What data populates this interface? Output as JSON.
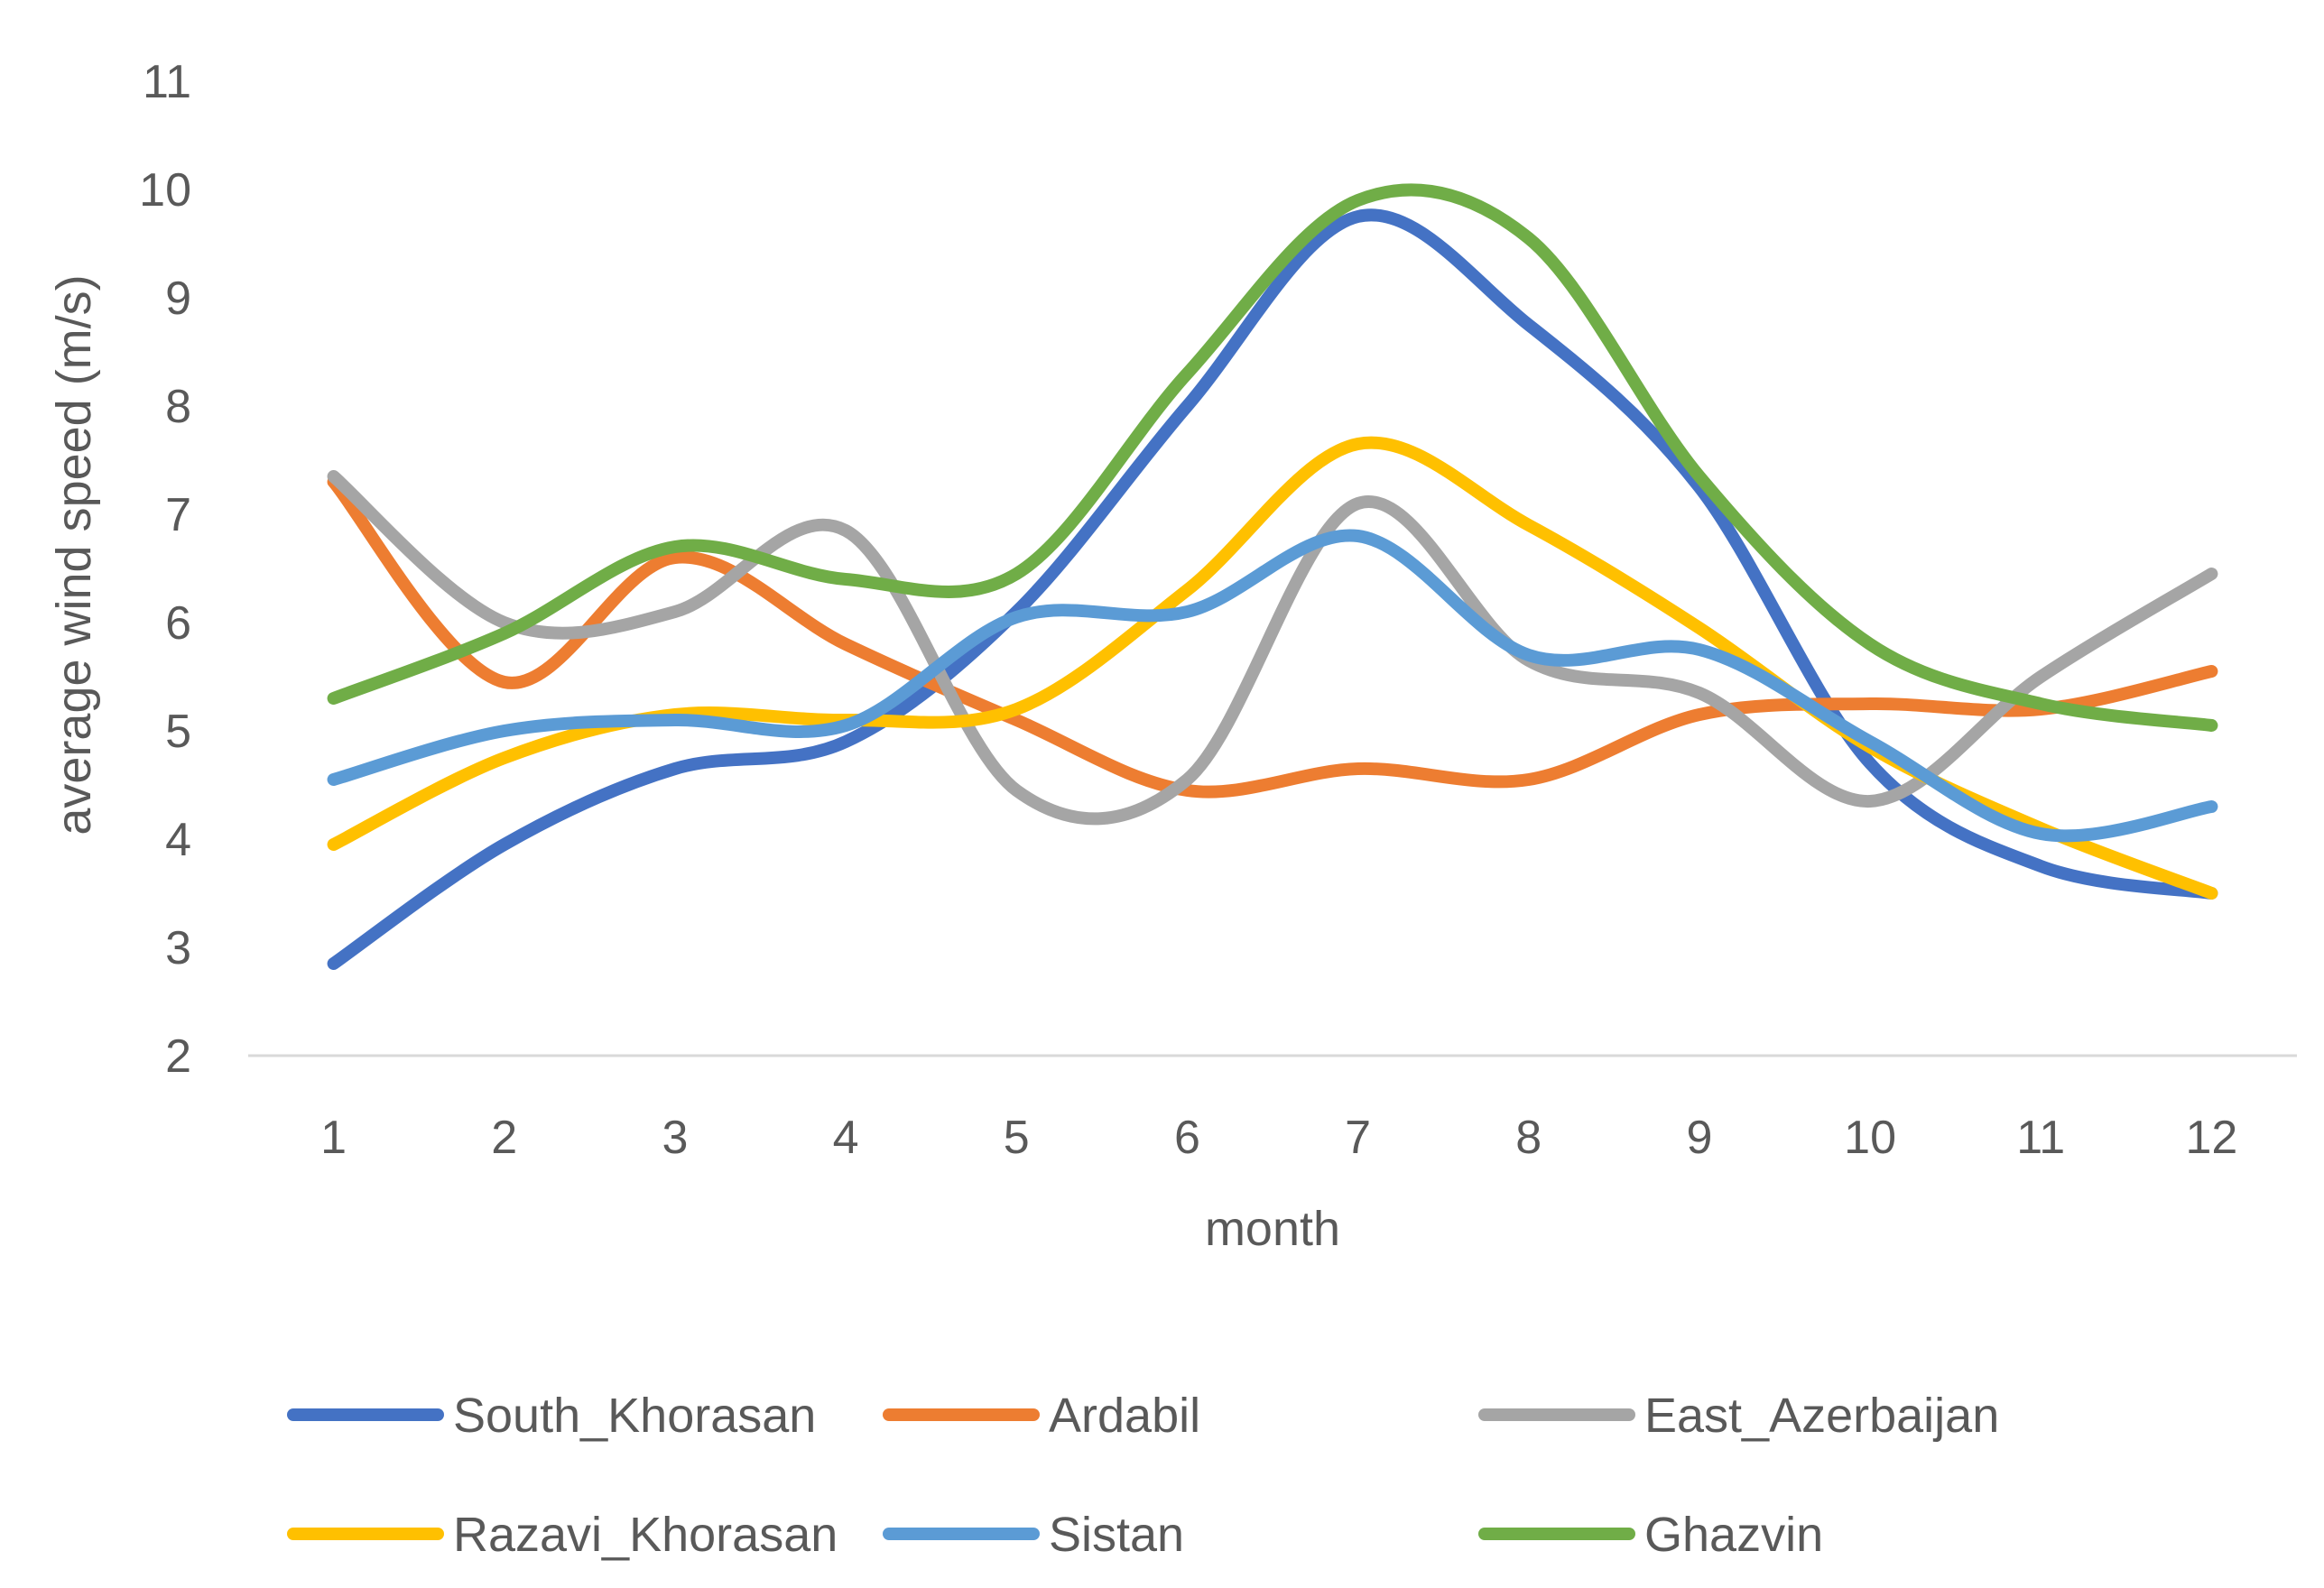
{
  "chart_data": {
    "type": "line",
    "title": "",
    "xlabel": "month",
    "ylabel": "average wind speed (m/s)",
    "ylim": [
      2,
      11
    ],
    "yticks": [
      2,
      3,
      4,
      5,
      6,
      7,
      8,
      9,
      10,
      11
    ],
    "categories": [
      "1",
      "2",
      "3",
      "4",
      "5",
      "6",
      "7",
      "8",
      "9",
      "10",
      "11",
      "12"
    ],
    "grid": false,
    "legend_position": "bottom",
    "series": [
      {
        "name": "South_Khorasan",
        "color": "#4472C4",
        "values": [
          2.85,
          3.95,
          4.65,
          4.9,
          6.1,
          8.0,
          9.75,
          8.75,
          7.25,
          4.7,
          3.75,
          3.5
        ]
      },
      {
        "name": "Ardabil",
        "color": "#ED7D31",
        "values": [
          7.3,
          5.45,
          6.6,
          5.8,
          5.1,
          4.45,
          4.65,
          4.55,
          5.15,
          5.25,
          5.2,
          5.55
        ]
      },
      {
        "name": "East_Azerbaijan",
        "color": "#A5A5A5",
        "values": [
          7.35,
          6.0,
          6.1,
          6.85,
          4.45,
          4.55,
          7.1,
          5.65,
          5.35,
          4.35,
          5.5,
          6.45
        ]
      },
      {
        "name": "Razavi_Khorasan",
        "color": "#FFC000",
        "values": [
          3.95,
          4.75,
          5.15,
          5.1,
          5.2,
          6.3,
          7.65,
          6.9,
          5.95,
          4.85,
          4.1,
          3.5
        ]
      },
      {
        "name": "Sistan",
        "color": "#5B9BD5",
        "values": [
          4.55,
          5.0,
          5.1,
          5.05,
          6.05,
          6.1,
          6.8,
          5.7,
          5.75,
          4.9,
          4.05,
          4.3
        ]
      },
      {
        "name": "Ghazvin",
        "color": "#70AD47",
        "values": [
          5.3,
          5.9,
          6.7,
          6.4,
          6.45,
          8.3,
          9.9,
          9.55,
          7.35,
          5.8,
          5.25,
          5.05
        ]
      }
    ]
  }
}
